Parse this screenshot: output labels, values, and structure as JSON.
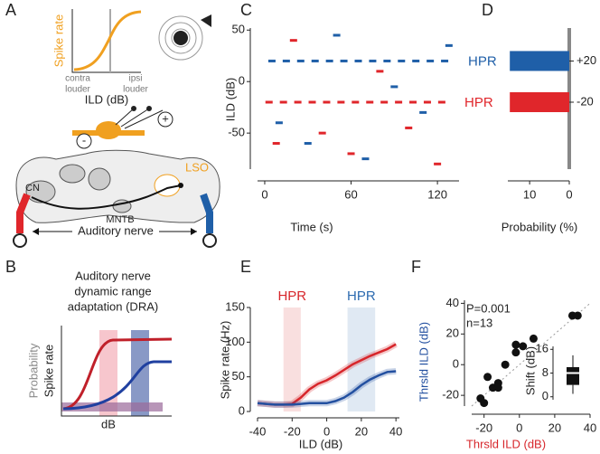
{
  "panel_labels": [
    "A",
    "B",
    "C",
    "D",
    "E",
    "F"
  ],
  "panel_a": {
    "ylabel": "Spike rate",
    "x_left_lines": [
      "contra",
      "louder"
    ],
    "x_right_lines": [
      "ipsi",
      "louder"
    ],
    "xlabel": "ILD (dB)",
    "inhibitory": "-",
    "excitatory": "+",
    "lso": "LSO",
    "cn": "CN",
    "mntb": "MNTB",
    "nerve": "Auditory nerve"
  },
  "panel_b": {
    "title_lines": [
      "Auditory nerve",
      "dynamic range",
      "adaptation (DRA)"
    ],
    "ylabel_probability": "Probability",
    "ylabel": "Spike rate",
    "xlabel": "dB"
  },
  "chart_data": [
    {
      "type": "scatter",
      "xlabel": "Time (s)",
      "ylabel": "ILD (dB)",
      "xlim": [
        -5,
        135
      ],
      "ylim": [
        -85,
        52
      ],
      "xticks": [
        0,
        60,
        120
      ],
      "yticks": [
        50,
        0,
        -50
      ],
      "series": [
        {
          "color": "#1f5fa8",
          "x": [
            5,
            15,
            25,
            35,
            45,
            55,
            65,
            75,
            85,
            95,
            105,
            115,
            125,
            10,
            30,
            50,
            70,
            90,
            110,
            128
          ],
          "y": [
            20,
            20,
            20,
            20,
            20,
            20,
            20,
            20,
            20,
            20,
            20,
            20,
            20,
            -40,
            -60,
            45,
            -75,
            -5,
            -30,
            35
          ]
        },
        {
          "color": "#e0262b",
          "x": [
            3,
            13,
            23,
            33,
            43,
            53,
            63,
            73,
            83,
            93,
            103,
            113,
            123,
            20,
            40,
            60,
            80,
            100,
            120,
            8
          ],
          "y": [
            -20,
            -20,
            -20,
            -20,
            -20,
            -20,
            -20,
            -20,
            -20,
            -20,
            -20,
            -20,
            -20,
            40,
            -50,
            -70,
            10,
            -45,
            -80,
            -60
          ]
        }
      ]
    },
    {
      "type": "bar",
      "orientation": "horizontal",
      "xlabel": "Probability (%)",
      "xlim": [
        15.5,
        0
      ],
      "xticks": [
        10,
        0
      ],
      "ylim": [
        -85,
        52
      ],
      "yticks": [
        {
          "value": 20,
          "label": "+20"
        },
        -20
      ],
      "y": [
        20,
        -20
      ],
      "values": [
        15,
        15
      ],
      "colors": [
        "#1f5fa8",
        "#e0262b"
      ],
      "annotations": [
        "HPR",
        "HPR"
      ]
    },
    {
      "type": "line",
      "xlabel": "ILD (dB)",
      "ylabel": "Spike rate (Hz)",
      "xlim": [
        -40,
        42
      ],
      "ylim": [
        0,
        150
      ],
      "xticks": [
        -40,
        -20,
        0,
        20,
        40
      ],
      "yticks": [
        0,
        50,
        100,
        150
      ],
      "x": [
        -40,
        -35,
        -30,
        -25,
        -20,
        -15,
        -10,
        -5,
        0,
        5,
        10,
        15,
        20,
        25,
        30,
        35,
        40
      ],
      "series": [
        {
          "color": "#d7262b",
          "values": [
            12,
            11,
            10,
            10,
            11,
            20,
            32,
            40,
            45,
            52,
            60,
            68,
            74,
            80,
            85,
            90,
            97
          ]
        },
        {
          "color": "#2350a0",
          "values": [
            12,
            11,
            10,
            10,
            10,
            11,
            12,
            12,
            12,
            15,
            20,
            28,
            38,
            46,
            52,
            57,
            58
          ]
        }
      ],
      "bands": [
        {
          "label": "HPR",
          "range": [
            -25,
            -15
          ],
          "color": "#d7262b"
        },
        {
          "label": "HPR",
          "range": [
            12,
            28
          ],
          "color": "#2d6bb0"
        }
      ]
    },
    {
      "type": "scatter",
      "xlabel": "Thrsld ILD (dB)",
      "ylabel": "Thrsld ILD (dB)",
      "xlabel_color": "#d7262b",
      "ylabel_color": "#2350a0",
      "xlim": [
        -27,
        40
      ],
      "ylim": [
        -27,
        42
      ],
      "xticks": [
        -20,
        0,
        20,
        40
      ],
      "yticks": [
        -20,
        0,
        20,
        40
      ],
      "x": [
        -22,
        -20,
        -18,
        -15,
        -12,
        -12,
        -8,
        -2,
        -2,
        2,
        8,
        30,
        33
      ],
      "y": [
        -22,
        -25,
        -8,
        -15,
        -12,
        -15,
        0,
        13,
        8,
        12,
        17,
        32,
        32
      ],
      "annotations": [
        "P=0.001",
        "n=13"
      ],
      "inset": {
        "type": "box",
        "ylabel": "Shift (dB)",
        "ylim": [
          -1,
          17
        ],
        "yticks": [
          0,
          8,
          16
        ],
        "whislo": 1,
        "q1": 4,
        "med": 8,
        "q3": 10,
        "whishi": 14
      }
    }
  ]
}
